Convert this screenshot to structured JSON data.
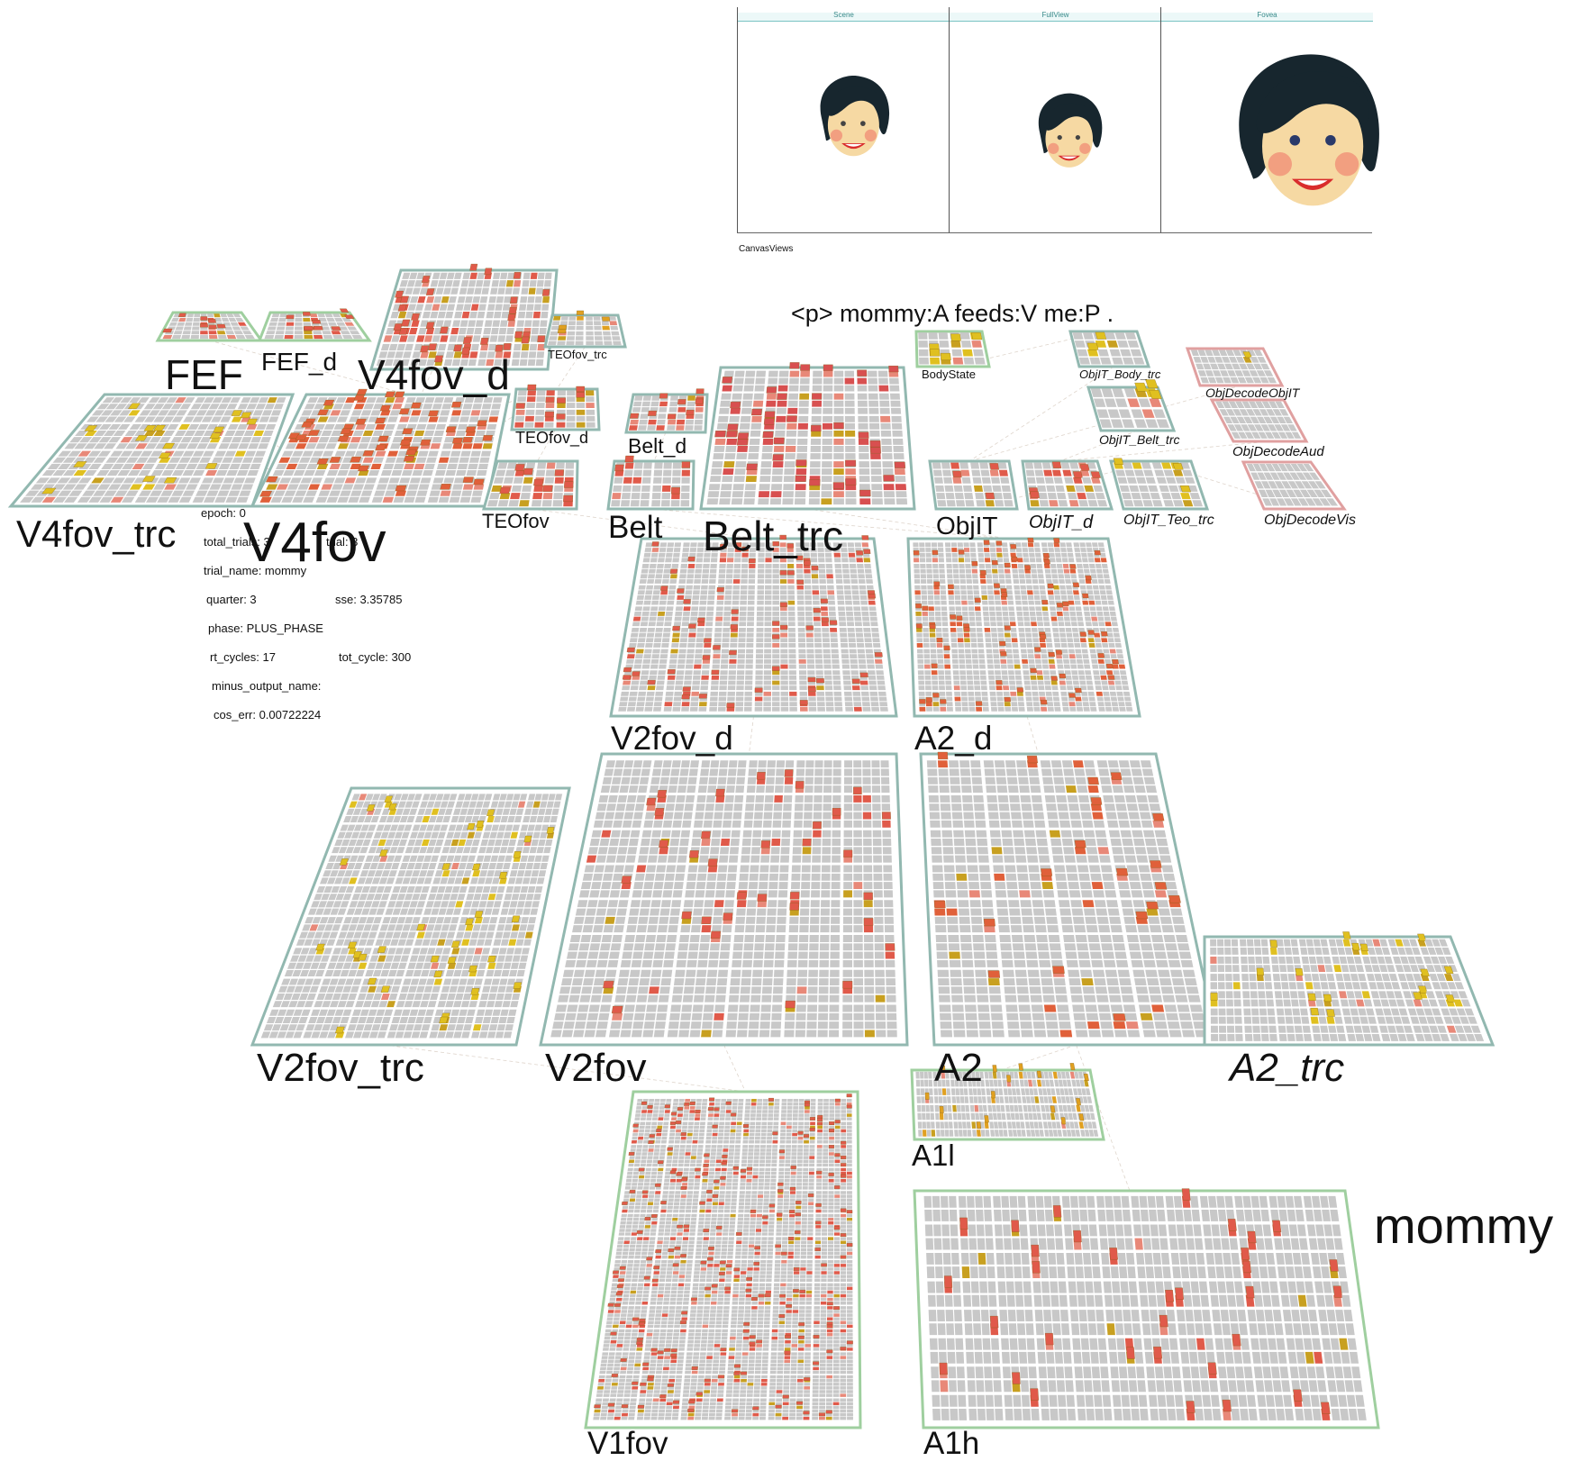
{
  "canvas_views": {
    "caption": "CanvasViews",
    "panels": [
      {
        "title": "Scene"
      },
      {
        "title": "FullView"
      },
      {
        "title": "Fovea"
      }
    ]
  },
  "sentence": "<p> mommy:A feeds:V me:P .",
  "target_word": "mommy",
  "stats": {
    "epoch": "epoch: 0",
    "total_trials": "total_trials: 3",
    "trial": "trial: 3",
    "trial_name": "trial_name: mommy",
    "quarter": "quarter: 3",
    "sse": "sse: 3.35785",
    "phase": "phase: PLUS_PHASE",
    "rt_cycles": "rt_cycles: 17",
    "tot_cycle": "tot_cycle: 300",
    "minus_output_name": "minus_output_name:",
    "cos_err": "cos_err: 0.00722224"
  },
  "layers": [
    {
      "name": "FEF",
      "italic": false,
      "border": "#9fcf9f",
      "hot": "#e05a4a"
    },
    {
      "name": "FEF_d",
      "italic": false,
      "border": "#9fcf9f",
      "hot": "#e05a4a"
    },
    {
      "name": "V4fov_d",
      "italic": false,
      "border": "#92b8b0",
      "hot": "#e05a4a"
    },
    {
      "name": "TEOfov_trc",
      "italic": false,
      "border": "#92b8b0",
      "hot": "#e0a020"
    },
    {
      "name": "V4fov_trc",
      "italic": false,
      "border": "#92b8b0",
      "hot": "#e0c020"
    },
    {
      "name": "V4fov",
      "italic": false,
      "border": "#92b8b0",
      "hot": "#e0603a"
    },
    {
      "name": "TEOfov_d",
      "italic": false,
      "border": "#92b8b0",
      "hot": "#e05a4a"
    },
    {
      "name": "Belt_d",
      "italic": false,
      "border": "#92b8b0",
      "hot": "#e05a4a"
    },
    {
      "name": "TEOfov",
      "italic": false,
      "border": "#92b8b0",
      "hot": "#e05a4a"
    },
    {
      "name": "Belt",
      "italic": false,
      "border": "#92b8b0",
      "hot": "#e05a4a"
    },
    {
      "name": "Belt_trc",
      "italic": false,
      "border": "#92b8b0",
      "hot": "#d85050"
    },
    {
      "name": "BodyState",
      "italic": false,
      "border": "#9fcf9f",
      "hot": "#e0c020"
    },
    {
      "name": "ObjIT_Body_trc",
      "italic": true,
      "border": "#92b8b0",
      "hot": "#e0c020"
    },
    {
      "name": "ObjIT_Belt_trc",
      "italic": true,
      "border": "#92b8b0",
      "hot": "#e0c020"
    },
    {
      "name": "ObjDecodeObjIT",
      "italic": true,
      "border": "#e0a0a0",
      "hot": "#e0c020"
    },
    {
      "name": "ObjDecodeAud",
      "italic": true,
      "border": "#e0a0a0",
      "hot": "#e0c020"
    },
    {
      "name": "ObjDecodeVis",
      "italic": true,
      "border": "#e0a0a0",
      "hot": "#e0c020"
    },
    {
      "name": "ObjIT",
      "italic": false,
      "border": "#92b8b0",
      "hot": "#e05a4a"
    },
    {
      "name": "ObjIT_d",
      "italic": true,
      "border": "#92b8b0",
      "hot": "#e05a4a"
    },
    {
      "name": "ObjIT_Teo_trc",
      "italic": true,
      "border": "#92b8b0",
      "hot": "#e0c020"
    },
    {
      "name": "V2fov_d",
      "italic": false,
      "border": "#92b8b0",
      "hot": "#e05a4a"
    },
    {
      "name": "A2_d",
      "italic": false,
      "border": "#92b8b0",
      "hot": "#e0603a"
    },
    {
      "name": "V2fov_trc",
      "italic": false,
      "border": "#92b8b0",
      "hot": "#e0c020"
    },
    {
      "name": "V2fov",
      "italic": false,
      "border": "#92b8b0",
      "hot": "#e05a4a"
    },
    {
      "name": "A2",
      "italic": false,
      "border": "#92b8b0",
      "hot": "#e0603a"
    },
    {
      "name": "A2_trc",
      "italic": true,
      "border": "#92b8b0",
      "hot": "#e0c020"
    },
    {
      "name": "A1l",
      "italic": false,
      "border": "#9fcf9f",
      "hot": "#e0a020"
    },
    {
      "name": "V1fov",
      "italic": false,
      "border": "#9fcf9f",
      "hot": "#e05a4a"
    },
    {
      "name": "A1h",
      "italic": false,
      "border": "#9fcf9f",
      "hot": "#e05a4a"
    }
  ],
  "colors": {
    "grid_cell": "#c8c8c8",
    "grid_gap": "#ffffff",
    "connection": "#c9b9a9"
  }
}
